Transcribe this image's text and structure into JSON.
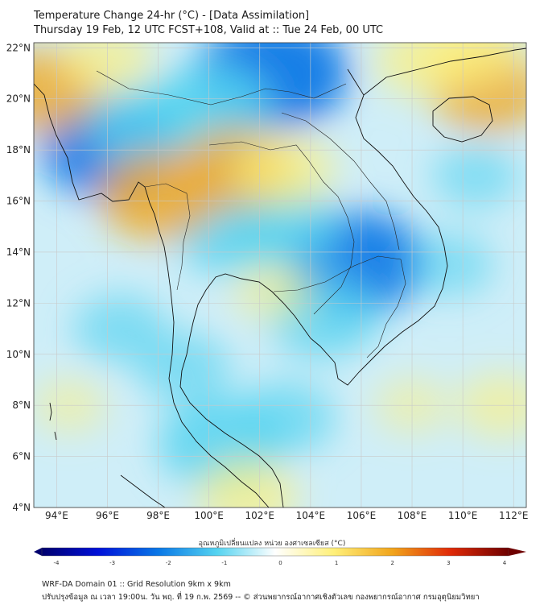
{
  "header": {
    "title": "Temperature Change 24-hr (°C) - [Data Assimilation]",
    "subtitle": "Thursday 19 Feb, 12 UTC FCST+108, Valid at :: Tue 24 Feb, 00 UTC"
  },
  "map": {
    "lat_labels": [
      "22°N",
      "20°N",
      "18°N",
      "16°N",
      "14°N",
      "12°N",
      "10°N",
      "8°N",
      "6°N",
      "4°N"
    ],
    "lon_labels": [
      "94°E",
      "96°E",
      "98°E",
      "100°E",
      "102°E",
      "104°E",
      "106°E",
      "108°E",
      "110°E",
      "112°E"
    ],
    "lat_range": [
      4,
      22.2
    ],
    "lon_range": [
      93.1,
      112.5
    ],
    "anomalies": [
      {
        "lon": 102.5,
        "lat": 21.0,
        "value": -1.4
      },
      {
        "lon": 100.0,
        "lat": 19.6,
        "value": -1.0
      },
      {
        "lon": 96.0,
        "lat": 18.0,
        "value": -1.1
      },
      {
        "lon": 97.5,
        "lat": 19.0,
        "value": -0.8
      },
      {
        "lon": 105.8,
        "lat": 13.6,
        "value": -1.2
      },
      {
        "lon": 104.5,
        "lat": 11.5,
        "value": -0.8
      },
      {
        "lon": 101.0,
        "lat": 14.8,
        "value": -0.9
      },
      {
        "lon": 103.0,
        "lat": 15.0,
        "value": -0.8
      },
      {
        "lon": 100.5,
        "lat": 6.5,
        "value": -1.0
      },
      {
        "lon": 103.0,
        "lat": 7.5,
        "value": -0.6
      },
      {
        "lon": 99.0,
        "lat": 9.5,
        "value": -0.5
      },
      {
        "lon": 96.5,
        "lat": 11.0,
        "value": -0.5
      },
      {
        "lon": 109.5,
        "lat": 13.5,
        "value": -0.4
      },
      {
        "lon": 110.5,
        "lat": 17.0,
        "value": -0.4
      },
      {
        "lon": 111.0,
        "lat": 20.3,
        "value": 0.8
      },
      {
        "lon": 108.5,
        "lat": 21.5,
        "value": 0.6
      },
      {
        "lon": 110.5,
        "lat": 22.0,
        "value": 0.6
      },
      {
        "lon": 98.0,
        "lat": 16.2,
        "value": 0.9
      },
      {
        "lon": 101.0,
        "lat": 17.3,
        "value": 0.8
      },
      {
        "lon": 103.0,
        "lat": 17.2,
        "value": 0.6
      },
      {
        "lon": 93.5,
        "lat": 20.3,
        "value": 0.8
      },
      {
        "lon": 96.0,
        "lat": 21.5,
        "value": 0.5
      },
      {
        "lon": 101.5,
        "lat": 4.5,
        "value": 0.6
      },
      {
        "lon": 111.5,
        "lat": 8.0,
        "value": 0.4
      },
      {
        "lon": 108.0,
        "lat": 8.0,
        "value": 0.2
      },
      {
        "lon": 102.5,
        "lat": 12.5,
        "value": 0.3
      },
      {
        "lon": 94.5,
        "lat": 8.0,
        "value": 0.2
      }
    ]
  },
  "colorbar": {
    "title": "อุณหภูมิเปลี่ยนแปลง หน่วย องศาเซลเซียส (°C)",
    "ticks": [
      "-4",
      "-3",
      "-2",
      "-1",
      "0",
      "1",
      "2",
      "3",
      "4"
    ],
    "range": [
      -4,
      4
    ]
  },
  "footer": {
    "line1": "WRF-DA Domain 01 :: Grid Resolution 9km x 9km",
    "line2": "ปรับปรุงข้อมูล ณ เวลา 19:00น. วัน พฤ. ที่ 19 ก.พ. 2569 -- © ส่วนพยากรณ์อากาศเชิงตัวเลข กองพยากรณ์อากาศ กรมอุตุนิยมวิทยา"
  },
  "colors": {
    "zero": "#ffffff",
    "cool_1": "#55d3f0",
    "cool_2": "#0a78e6",
    "warm_1": "#fff07a",
    "warm_2": "#f1a51c",
    "coast": "#111111",
    "grid": "#c9c9c9"
  }
}
